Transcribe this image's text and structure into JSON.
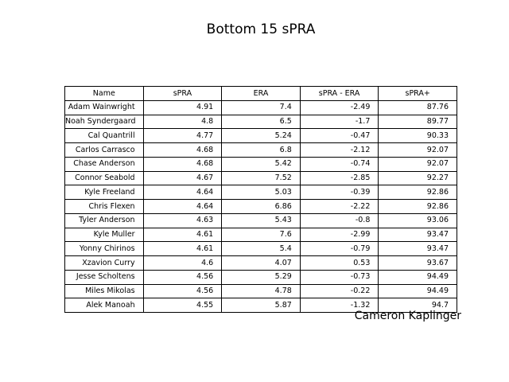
{
  "page": {
    "title": "Bottom 15 sPRA",
    "credit": "Cameron Kaplinger"
  },
  "chart_data": {
    "type": "table",
    "title": "Bottom 15 sPRA",
    "columns": [
      "Name",
      "sPRA",
      "ERA",
      "sPRA - ERA",
      "sPRA+"
    ],
    "rows": [
      [
        "Adam Wainwright",
        "4.91",
        "7.4",
        "-2.49",
        "87.76"
      ],
      [
        "Noah Syndergaard",
        "4.8",
        "6.5",
        "-1.7",
        "89.77"
      ],
      [
        "Cal Quantrill",
        "4.77",
        "5.24",
        "-0.47",
        "90.33"
      ],
      [
        "Carlos Carrasco",
        "4.68",
        "6.8",
        "-2.12",
        "92.07"
      ],
      [
        "Chase Anderson",
        "4.68",
        "5.42",
        "-0.74",
        "92.07"
      ],
      [
        "Connor Seabold",
        "4.67",
        "7.52",
        "-2.85",
        "92.27"
      ],
      [
        "Kyle Freeland",
        "4.64",
        "5.03",
        "-0.39",
        "92.86"
      ],
      [
        "Chris Flexen",
        "4.64",
        "6.86",
        "-2.22",
        "92.86"
      ],
      [
        "Tyler Anderson",
        "4.63",
        "5.43",
        "-0.8",
        "93.06"
      ],
      [
        "Kyle Muller",
        "4.61",
        "7.6",
        "-2.99",
        "93.47"
      ],
      [
        "Yonny Chirinos",
        "4.61",
        "5.4",
        "-0.79",
        "93.47"
      ],
      [
        "Xzavion Curry",
        "4.6",
        "4.07",
        "0.53",
        "93.67"
      ],
      [
        "Jesse Scholtens",
        "4.56",
        "5.29",
        "-0.73",
        "94.49"
      ],
      [
        "Miles Mikolas",
        "4.56",
        "4.78",
        "-0.22",
        "94.49"
      ],
      [
        "Alek Manoah",
        "4.55",
        "5.87",
        "-1.32",
        "94.7"
      ]
    ],
    "layout": {
      "text_color": "#000000",
      "border_color": "#000000",
      "background": "#ffffff",
      "header_align": "center",
      "cell_align": "right"
    }
  }
}
